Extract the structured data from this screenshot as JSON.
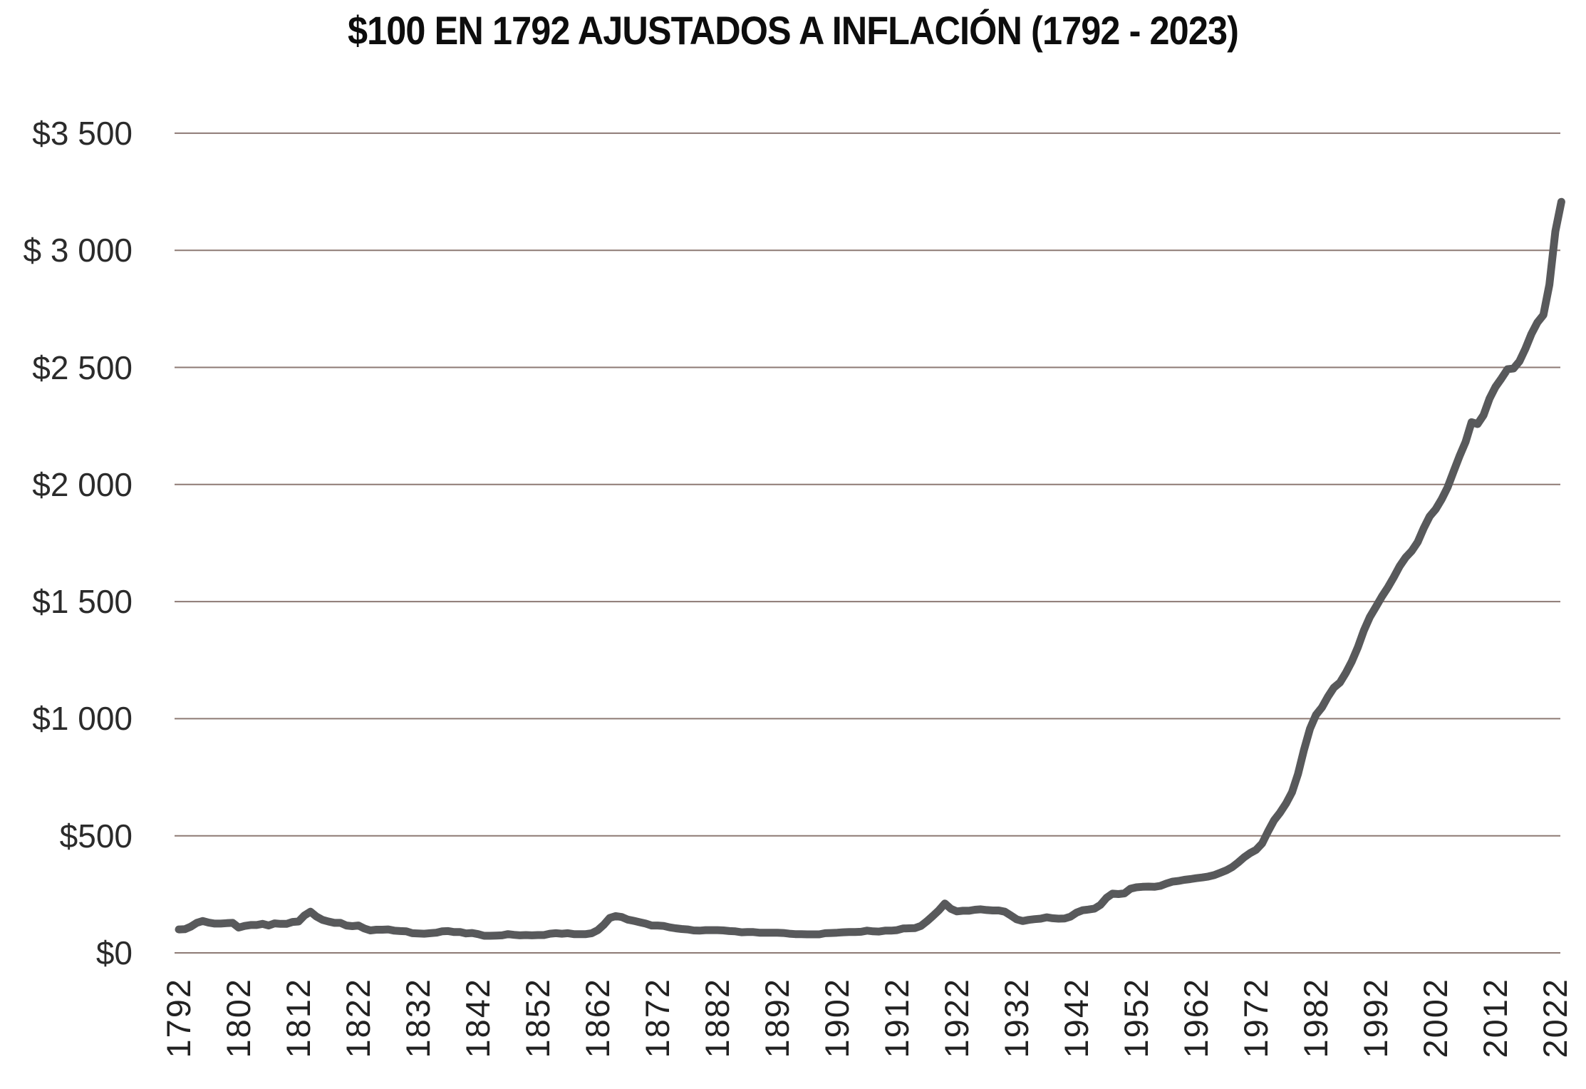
{
  "chart_data": {
    "type": "line",
    "title": "$100 EN 1792 AJUSTADOS A INFLACIÓN (1792 - 2023)",
    "xlabel": "",
    "ylabel": "",
    "ylim": [
      0,
      3500
    ],
    "grid": "horizontal",
    "legend": "none",
    "line_color": "#58595b",
    "gridline_color": "#8d7a74",
    "x_start_year": 1792,
    "x_end_year": 2023,
    "x_tick_step_years": 10,
    "x_tick_labels": [
      "1792",
      "1802",
      "1812",
      "1822",
      "1832",
      "1842",
      "1852",
      "1862",
      "1872",
      "1882",
      "1892",
      "1902",
      "1912",
      "1922",
      "1932",
      "1942",
      "1952",
      "1962",
      "1972",
      "1982",
      "1992",
      "2002",
      "2012",
      "2022"
    ],
    "y_ticks": [
      {
        "value": 0,
        "label": "$0"
      },
      {
        "value": 500,
        "label": "$500"
      },
      {
        "value": 1000,
        "label": "$1 000"
      },
      {
        "value": 1500,
        "label": "$1 500"
      },
      {
        "value": 2000,
        "label": "$2 000"
      },
      {
        "value": 2500,
        "label": "$2 500"
      },
      {
        "value": 3000,
        "label": "$ 3 000"
      },
      {
        "value": 3500,
        "label": "$3 500"
      }
    ],
    "series": [
      {
        "name": "$100 de 1792 ajustados a inflación (USD)",
        "x_years": "anual 1792-2023",
        "values": [
          100,
          101,
          112,
          128,
          136,
          129,
          125,
          125,
          127,
          128,
          108,
          115,
          119,
          119,
          124,
          117,
          126,
          124,
          124,
          132,
          134,
          160,
          176,
          155,
          141,
          134,
          128,
          128,
          117,
          114,
          117,
          104,
          96,
          99,
          99,
          100,
          95,
          93,
          92,
          84,
          83,
          82,
          84,
          86,
          92,
          93,
          89,
          89,
          83,
          85,
          80,
          73,
          73,
          74,
          75,
          80,
          77,
          75,
          76,
          75,
          76,
          76,
          82,
          84,
          82,
          84,
          80,
          80,
          80,
          84,
          97,
          120,
          149,
          157,
          153,
          142,
          137,
          131,
          125,
          117,
          117,
          115,
          109,
          105,
          102,
          100,
          96,
          95,
          97,
          97,
          97,
          96,
          93,
          92,
          88,
          89,
          89,
          86,
          86,
          86,
          86,
          85,
          82,
          80,
          80,
          79,
          79,
          79,
          84,
          85,
          86,
          88,
          89,
          89,
          90,
          95,
          92,
          91,
          95,
          95,
          97,
          104,
          105,
          106,
          115,
          135,
          158,
          182,
          211,
          188,
          177,
          180,
          180,
          184,
          186,
          183,
          181,
          181,
          176,
          160,
          143,
          136,
          141,
          144,
          146,
          152,
          148,
          146,
          147,
          155,
          172,
          182,
          185,
          189,
          205,
          235,
          253,
          251,
          254,
          274,
          280,
          282,
          283,
          282,
          286,
          296,
          304,
          307,
          312,
          315,
          319,
          322,
          326,
          332,
          342,
          352,
          366,
          386,
          408,
          426,
          440,
          467,
          519,
          566,
          599,
          638,
          686,
          764,
          867,
          957,
          1016,
          1048,
          1094,
          1133,
          1154,
          1196,
          1245,
          1305,
          1376,
          1434,
          1477,
          1521,
          1560,
          1604,
          1652,
          1689,
          1716,
          1754,
          1813,
          1864,
          1894,
          1937,
          1988,
          2056,
          2122,
          2182,
          2266,
          2258,
          2296,
          2367,
          2417,
          2453,
          2492,
          2495,
          2526,
          2580,
          2643,
          2692,
          2724,
          2853,
          3081,
          3207
        ]
      }
    ]
  }
}
